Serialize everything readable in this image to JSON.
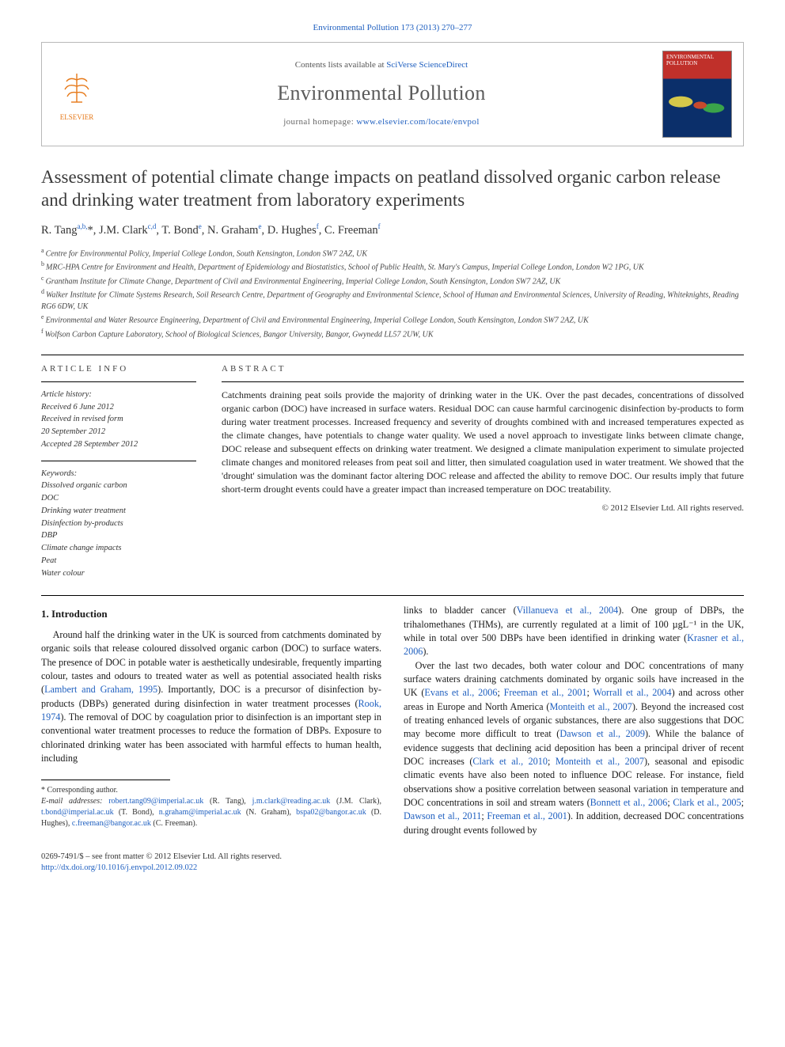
{
  "citation_line": "Environmental Pollution 173 (2013) 270–277",
  "header": {
    "contents_prefix": "Contents lists available at ",
    "contents_link": "SciVerse ScienceDirect",
    "journal": "Environmental Pollution",
    "homepage_prefix": "journal homepage: ",
    "homepage_url": "www.elsevier.com/locate/envpol",
    "publisher_logo_text": "ELSEVIER",
    "cover_title": "ENVIRONMENTAL POLLUTION"
  },
  "article": {
    "title": "Assessment of potential climate change impacts on peatland dissolved organic carbon release and drinking water treatment from laboratory experiments",
    "authors_html": "R. Tang<sup>a,b,</sup><span class='star'>*</span>, J.M. Clark<sup>c,d</sup>, T. Bond<sup>e</sup>, N. Graham<sup>e</sup>, D. Hughes<sup>f</sup>, C. Freeman<sup>f</sup>",
    "affiliations": [
      {
        "key": "a",
        "text": "Centre for Environmental Policy, Imperial College London, South Kensington, London SW7 2AZ, UK"
      },
      {
        "key": "b",
        "text": "MRC-HPA Centre for Environment and Health, Department of Epidemiology and Biostatistics, School of Public Health, St. Mary's Campus, Imperial College London, London W2 1PG, UK"
      },
      {
        "key": "c",
        "text": "Grantham Institute for Climate Change, Department of Civil and Environmental Engineering, Imperial College London, South Kensington, London SW7 2AZ, UK"
      },
      {
        "key": "d",
        "text": "Walker Institute for Climate Systems Research, Soil Research Centre, Department of Geography and Environmental Science, School of Human and Environmental Sciences, University of Reading, Whiteknights, Reading RG6 6DW, UK"
      },
      {
        "key": "e",
        "text": "Environmental and Water Resource Engineering, Department of Civil and Environmental Engineering, Imperial College London, South Kensington, London SW7 2AZ, UK"
      },
      {
        "key": "f",
        "text": "Wolfson Carbon Capture Laboratory, School of Biological Sciences, Bangor University, Bangor, Gwynedd LL57 2UW, UK"
      }
    ]
  },
  "info": {
    "label": "ARTICLE INFO",
    "history_label": "Article history:",
    "history": [
      "Received 6 June 2012",
      "Received in revised form",
      "20 September 2012",
      "Accepted 28 September 2012"
    ],
    "keywords_label": "Keywords:",
    "keywords": [
      "Dissolved organic carbon",
      "DOC",
      "Drinking water treatment",
      "Disinfection by-products",
      "DBP",
      "Climate change impacts",
      "Peat",
      "Water colour"
    ]
  },
  "abstract": {
    "label": "ABSTRACT",
    "text": "Catchments draining peat soils provide the majority of drinking water in the UK. Over the past decades, concentrations of dissolved organic carbon (DOC) have increased in surface waters. Residual DOC can cause harmful carcinogenic disinfection by-products to form during water treatment processes. Increased frequency and severity of droughts combined with and increased temperatures expected as the climate changes, have potentials to change water quality. We used a novel approach to investigate links between climate change, DOC release and subsequent effects on drinking water treatment. We designed a climate manipulation experiment to simulate projected climate changes and monitored releases from peat soil and litter, then simulated coagulation used in water treatment. We showed that the 'drought' simulation was the dominant factor altering DOC release and affected the ability to remove DOC. Our results imply that future short-term drought events could have a greater impact than increased temperature on DOC treatability.",
    "copyright": "© 2012 Elsevier Ltd. All rights reserved."
  },
  "body": {
    "section1_heading": "1. Introduction",
    "p1_a": "Around half the drinking water in the UK is sourced from catchments dominated by organic soils that release coloured dissolved organic carbon (DOC) to surface waters. The presence of DOC in potable water is aesthetically undesirable, frequently imparting colour, tastes and odours to treated water as well as potential associated health risks (",
    "p1_ref1": "Lambert and Graham, 1995",
    "p1_b": "). Importantly, DOC is a precursor of disinfection by-products (DBPs) generated during disinfection in water treatment processes (",
    "p1_ref2": "Rook, 1974",
    "p1_c": "). The removal of DOC by coagulation prior to disinfection is an important step in conventional water treatment processes to reduce the formation of DBPs. Exposure to chlorinated drinking water has been associated with harmful effects to human health, including",
    "p2_a": "links to bladder cancer (",
    "p2_ref1": "Villanueva et al., 2004",
    "p2_b": "). One group of DBPs, the trihalomethanes (THMs), are currently regulated at a limit of 100 µgL⁻¹ in the UK, while in total over 500 DBPs have been identified in drinking water (",
    "p2_ref2": "Krasner et al., 2006",
    "p2_c": ").",
    "p3_a": "Over the last two decades, both water colour and DOC concentrations of many surface waters draining catchments dominated by organic soils have increased in the UK (",
    "p3_ref1": "Evans et al., 2006",
    "p3_sep1": "; ",
    "p3_ref2": "Freeman et al., 2001",
    "p3_sep2": "; ",
    "p3_ref3": "Worrall et al., 2004",
    "p3_b": ") and across other areas in Europe and North America (",
    "p3_ref4": "Monteith et al., 2007",
    "p3_c": "). Beyond the increased cost of treating enhanced levels of organic substances, there are also suggestions that DOC may become more difficult to treat (",
    "p3_ref5": "Dawson et al., 2009",
    "p3_d": "). While the balance of evidence suggests that declining acid deposition has been a principal driver of recent DOC increases (",
    "p3_ref6": "Clark et al., 2010",
    "p3_sep3": "; ",
    "p3_ref7": "Monteith et al., 2007",
    "p3_e": "), seasonal and episodic climatic events have also been noted to influence DOC release. For instance, field observations show a positive correlation between seasonal variation in temperature and DOC concentrations in soil and stream waters (",
    "p3_ref8": "Bonnett et al., 2006",
    "p3_sep4": "; ",
    "p3_ref9": "Clark et al., 2005",
    "p3_sep5": "; ",
    "p3_ref10": "Dawson et al., 2011",
    "p3_sep6": "; ",
    "p3_ref11": "Freeman et al., 2001",
    "p3_f": "). In addition, decreased DOC concentrations during drought events followed by"
  },
  "footnotes": {
    "corr_label": "* Corresponding author.",
    "email_label": "E-mail addresses: ",
    "emails": [
      {
        "addr": "robert.tang09@imperial.ac.uk",
        "who": "(R. Tang)"
      },
      {
        "addr": "j.m.clark@reading.ac.uk",
        "who": "(J.M. Clark)"
      },
      {
        "addr": "t.bond@imperial.ac.uk",
        "who": "(T. Bond)"
      },
      {
        "addr": "n.graham@imperial.ac.uk",
        "who": "(N. Graham)"
      },
      {
        "addr": "bspa02@bangor.ac.uk",
        "who": "(D. Hughes)"
      },
      {
        "addr": "c.freeman@bangor.ac.uk",
        "who": "(C. Freeman)"
      }
    ]
  },
  "bottom": {
    "front_matter": "0269-7491/$ – see front matter © 2012 Elsevier Ltd. All rights reserved.",
    "doi": "http://dx.doi.org/10.1016/j.envpol.2012.09.022"
  },
  "colors": {
    "link": "#2060c0",
    "elsevier_orange": "#e67817",
    "cover_red": "#c0302a",
    "cover_blue": "#0b2f6a",
    "text": "#1a1a1a",
    "border_gray": "#b8b8b8"
  }
}
